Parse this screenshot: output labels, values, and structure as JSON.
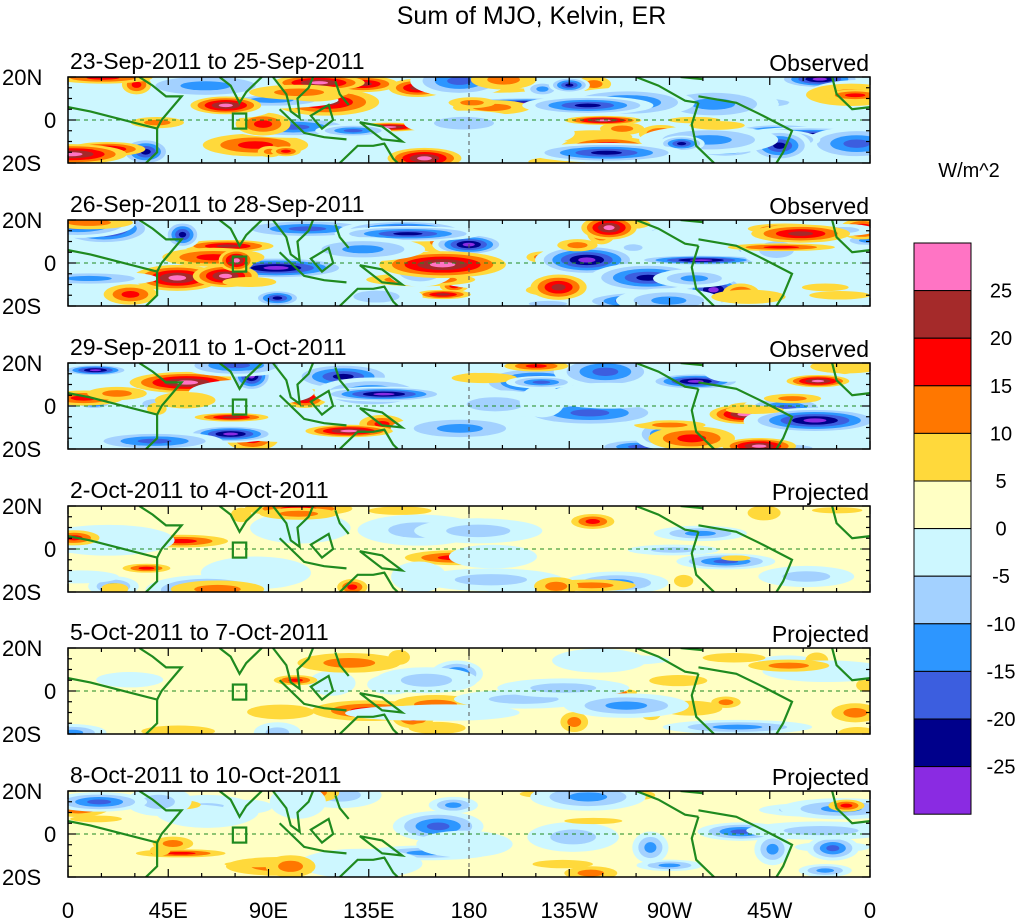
{
  "chart_data": {
    "type": "heatmap",
    "title": "Sum of MJO, Kelvin, ER",
    "units": "W/m^2",
    "colorbar": {
      "ticks": [
        "25",
        "20",
        "15",
        "10",
        "5",
        "0",
        "-5",
        "-10",
        "-15",
        "-20",
        "-25"
      ],
      "colors": [
        "#ff74c4",
        "#a52a2a",
        "#ff0000",
        "#ff7700",
        "#ffd93b",
        "#ffffc4",
        "#cdf7ff",
        "#a3d1ff",
        "#2d96ff",
        "#3c5edf",
        "#00008b",
        "#8a2be2"
      ]
    },
    "lat_ticks": [
      "20N",
      "0",
      "20S"
    ],
    "lon_ticks": [
      "0",
      "45E",
      "90E",
      "135E",
      "180",
      "135W",
      "90W",
      "45W",
      "0"
    ],
    "lat_range": [
      -20,
      20
    ],
    "lon_range": [
      0,
      360
    ],
    "panels": [
      {
        "date_range": "23-Sep-2011 to 25-Sep-2011",
        "kind": "Observed"
      },
      {
        "date_range": "26-Sep-2011 to 28-Sep-2011",
        "kind": "Observed"
      },
      {
        "date_range": "29-Sep-2011 to 1-Oct-2011",
        "kind": "Observed"
      },
      {
        "date_range": "2-Oct-2011 to 4-Oct-2011",
        "kind": "Projected"
      },
      {
        "date_range": "5-Oct-2011 to 7-Oct-2011",
        "kind": "Projected"
      },
      {
        "date_range": "8-Oct-2011 to 10-Oct-2011",
        "kind": "Projected"
      }
    ]
  }
}
